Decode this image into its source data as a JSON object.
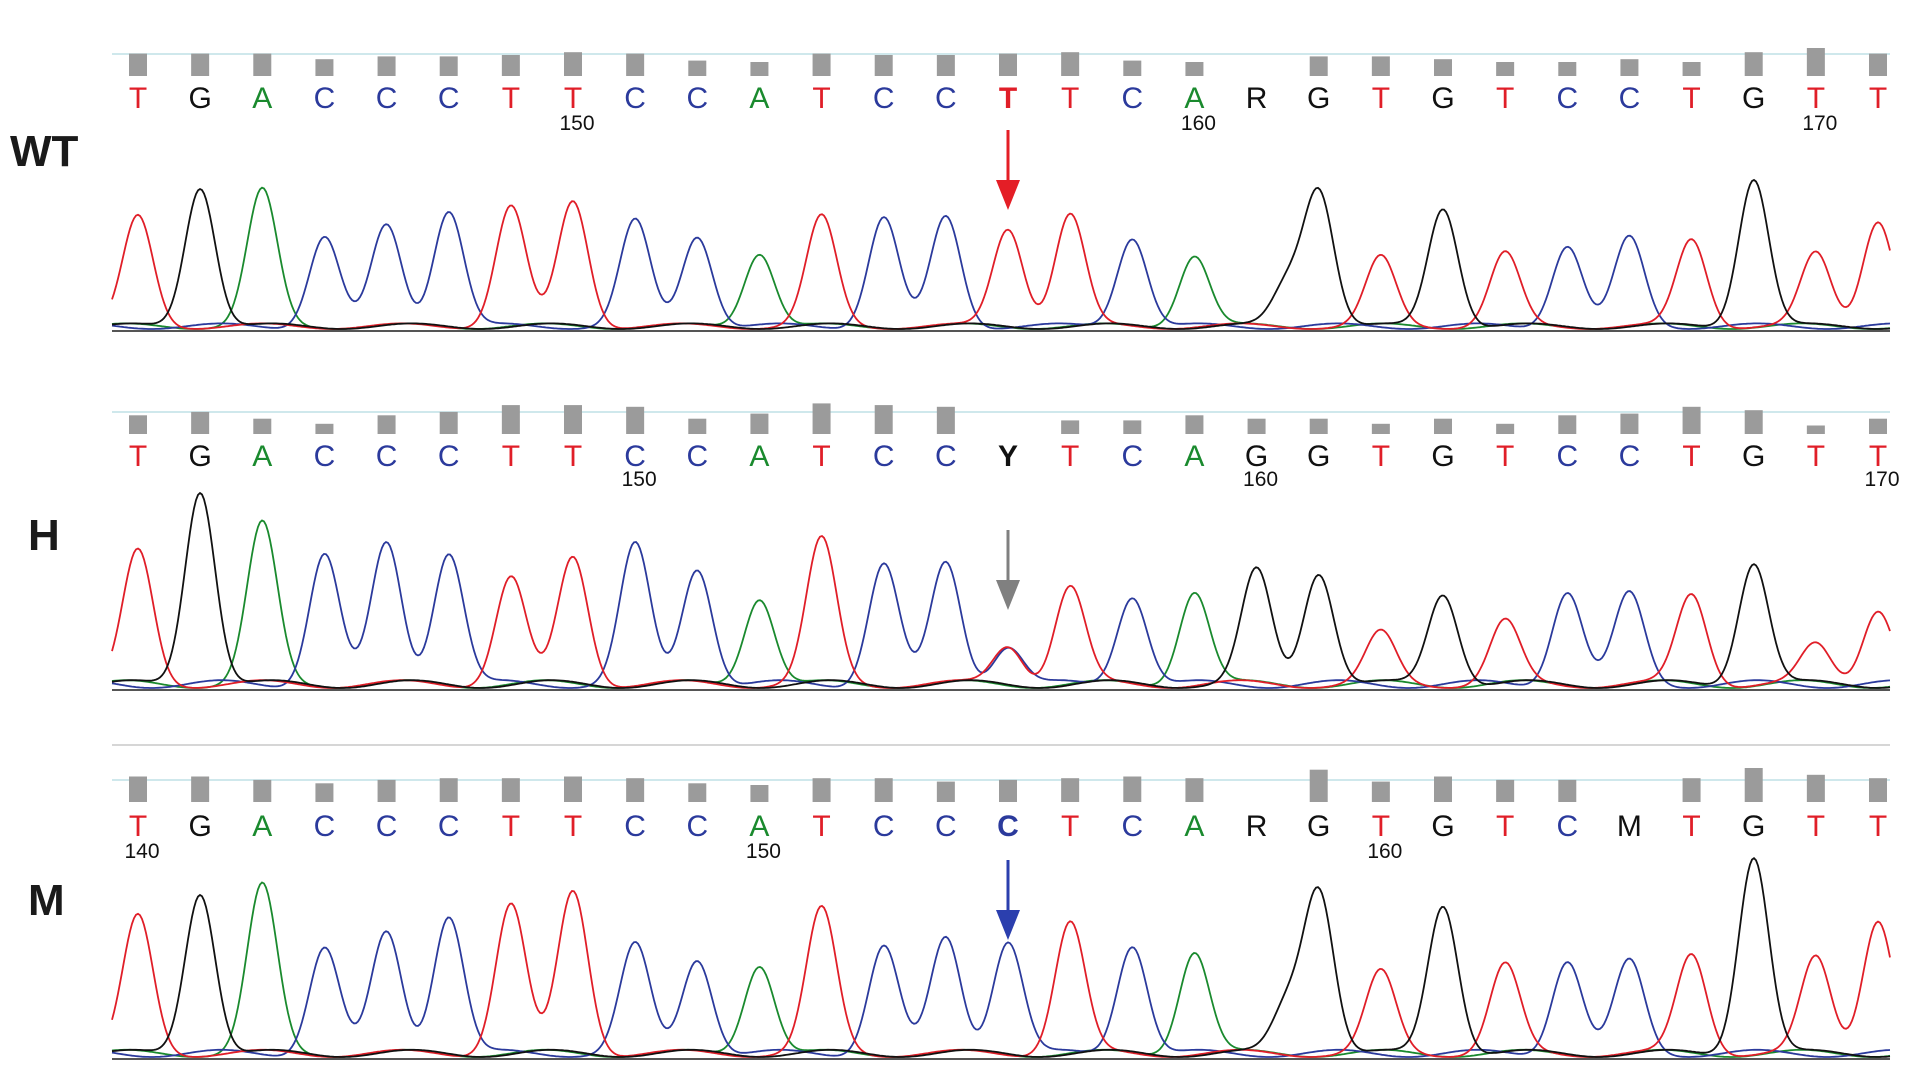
{
  "base_colors": {
    "A": "#1a8a2e",
    "C": "#2b3a9c",
    "G": "#111111",
    "T": "#e01e28",
    "other": "#111111"
  },
  "arrow_colors": [
    "#e41e26",
    "#808080",
    "#2b3fae"
  ],
  "chart_data": [
    {
      "type": "chromatogram",
      "label": "WT",
      "bases": [
        "T",
        "G",
        "A",
        "C",
        "C",
        "C",
        "T",
        "T",
        "C",
        "C",
        "A",
        "T",
        "C",
        "C",
        "T",
        "T",
        "C",
        "A",
        "R",
        "G",
        "T",
        "G",
        "T",
        "C",
        "C",
        "T",
        "G",
        "T",
        "T"
      ],
      "quality": [
        0.8,
        0.8,
        0.8,
        0.6,
        0.7,
        0.7,
        0.75,
        0.85,
        0.8,
        0.55,
        0.5,
        0.8,
        0.75,
        0.75,
        0.8,
        0.85,
        0.55,
        0.5,
        0,
        0.7,
        0.7,
        0.6,
        0.5,
        0.5,
        0.6,
        0.5,
        0.85,
        1.0,
        0.8
      ],
      "position_labels": [
        {
          "after": 7,
          "text": "150"
        },
        {
          "after": 17,
          "text": "160"
        },
        {
          "after": 27,
          "text": "170"
        }
      ],
      "highlight_index": 14,
      "peaks": {
        "A": [
          [
            2,
            0.97
          ],
          [
            10,
            0.53
          ],
          [
            17,
            0.51
          ]
        ],
        "C": [
          [
            3,
            0.64
          ],
          [
            4,
            0.72
          ],
          [
            5,
            0.83
          ],
          [
            8,
            0.75
          ],
          [
            9,
            0.65
          ],
          [
            12,
            0.78
          ],
          [
            13,
            0.78
          ],
          [
            16,
            0.64
          ],
          [
            23,
            0.58
          ],
          [
            24,
            0.63
          ]
        ],
        "G": [
          [
            1,
            1.0
          ],
          [
            18.5,
            0.3
          ],
          [
            19,
            0.97
          ],
          [
            21,
            0.85
          ],
          [
            26,
            1.06
          ]
        ],
        "T": [
          [
            0,
            0.78
          ],
          [
            6,
            0.86
          ],
          [
            7,
            0.89
          ],
          [
            11,
            0.78
          ],
          [
            14,
            0.7
          ],
          [
            15,
            0.8
          ],
          [
            20,
            0.49
          ],
          [
            22,
            0.52
          ],
          [
            25,
            0.62
          ],
          [
            27,
            0.52
          ],
          [
            28,
            0.76
          ]
        ]
      }
    },
    {
      "type": "chromatogram",
      "label": "H",
      "bases": [
        "T",
        "G",
        "A",
        "C",
        "C",
        "C",
        "T",
        "T",
        "C",
        "C",
        "A",
        "T",
        "C",
        "C",
        "Y",
        "T",
        "C",
        "A",
        "G",
        "G",
        "T",
        "G",
        "T",
        "C",
        "C",
        "T",
        "G",
        "T",
        "T"
      ],
      "quality": [
        0.55,
        0.65,
        0.45,
        0.3,
        0.55,
        0.65,
        0.85,
        0.85,
        0.8,
        0.45,
        0.6,
        0.9,
        0.85,
        0.8,
        0,
        0.4,
        0.4,
        0.55,
        0.45,
        0.45,
        0.3,
        0.45,
        0.3,
        0.55,
        0.6,
        0.8,
        0.7,
        0.25,
        0.45
      ],
      "position_labels": [
        {
          "after": 8,
          "text": "150"
        },
        {
          "after": 18,
          "text": "160"
        },
        {
          "after": 28,
          "text": "170"
        }
      ],
      "highlight_index": 14,
      "peaks": {
        "A": [
          [
            2,
            0.82
          ],
          [
            10,
            0.45
          ],
          [
            17,
            0.48
          ]
        ],
        "C": [
          [
            3,
            0.67
          ],
          [
            4,
            0.72
          ],
          [
            5,
            0.68
          ],
          [
            8,
            0.71
          ],
          [
            9,
            0.6
          ],
          [
            12,
            0.62
          ],
          [
            13,
            0.62
          ],
          [
            14,
            0.2
          ],
          [
            16,
            0.46
          ],
          [
            23,
            0.48
          ],
          [
            24,
            0.46
          ]
        ],
        "G": [
          [
            1,
            1.0
          ],
          [
            18,
            0.58
          ],
          [
            19,
            0.58
          ],
          [
            21,
            0.47
          ],
          [
            26,
            0.63
          ]
        ],
        "T": [
          [
            0,
            0.68
          ],
          [
            6,
            0.55
          ],
          [
            7,
            0.65
          ],
          [
            11,
            0.74
          ],
          [
            14,
            0.2
          ],
          [
            15,
            0.5
          ],
          [
            20,
            0.26
          ],
          [
            22,
            0.32
          ],
          [
            25,
            0.46
          ],
          [
            27,
            0.2
          ],
          [
            28,
            0.39
          ]
        ]
      }
    },
    {
      "type": "chromatogram",
      "label": "M",
      "bases": [
        "T",
        "G",
        "A",
        "C",
        "C",
        "C",
        "T",
        "T",
        "C",
        "C",
        "A",
        "T",
        "C",
        "C",
        "C",
        "T",
        "C",
        "A",
        "R",
        "G",
        "T",
        "G",
        "T",
        "C",
        "M",
        "T",
        "G",
        "T",
        "T"
      ],
      "quality": [
        0.75,
        0.75,
        0.65,
        0.55,
        0.65,
        0.7,
        0.7,
        0.75,
        0.7,
        0.55,
        0.5,
        0.7,
        0.7,
        0.6,
        0.65,
        0.7,
        0.75,
        0.7,
        0,
        0.95,
        0.6,
        0.75,
        0.65,
        0.65,
        0,
        0.7,
        1.0,
        0.8,
        0.7
      ],
      "position_labels": [
        {
          "after": 0,
          "text": "140"
        },
        {
          "after": 10,
          "text": "150"
        },
        {
          "after": 20,
          "text": "160"
        }
      ],
      "highlight_index": 14,
      "peaks": {
        "A": [
          [
            2,
            0.93
          ],
          [
            10,
            0.5
          ],
          [
            17,
            0.57
          ]
        ],
        "C": [
          [
            3,
            0.59
          ],
          [
            4,
            0.67
          ],
          [
            5,
            0.77
          ],
          [
            8,
            0.6
          ],
          [
            9,
            0.53
          ],
          [
            12,
            0.6
          ],
          [
            13,
            0.64
          ],
          [
            14,
            0.63
          ],
          [
            16,
            0.61
          ],
          [
            23,
            0.52
          ],
          [
            24,
            0.51
          ]
        ],
        "G": [
          [
            1,
            0.9
          ],
          [
            18.5,
            0.27
          ],
          [
            19,
            0.91
          ],
          [
            21,
            0.83
          ],
          [
            26,
            1.1
          ]
        ],
        "T": [
          [
            0,
            0.76
          ],
          [
            6,
            0.83
          ],
          [
            7,
            0.9
          ],
          [
            11,
            0.8
          ],
          [
            15,
            0.73
          ],
          [
            20,
            0.45
          ],
          [
            22,
            0.49
          ],
          [
            25,
            0.55
          ],
          [
            27,
            0.53
          ],
          [
            28,
            0.75
          ]
        ]
      }
    }
  ]
}
